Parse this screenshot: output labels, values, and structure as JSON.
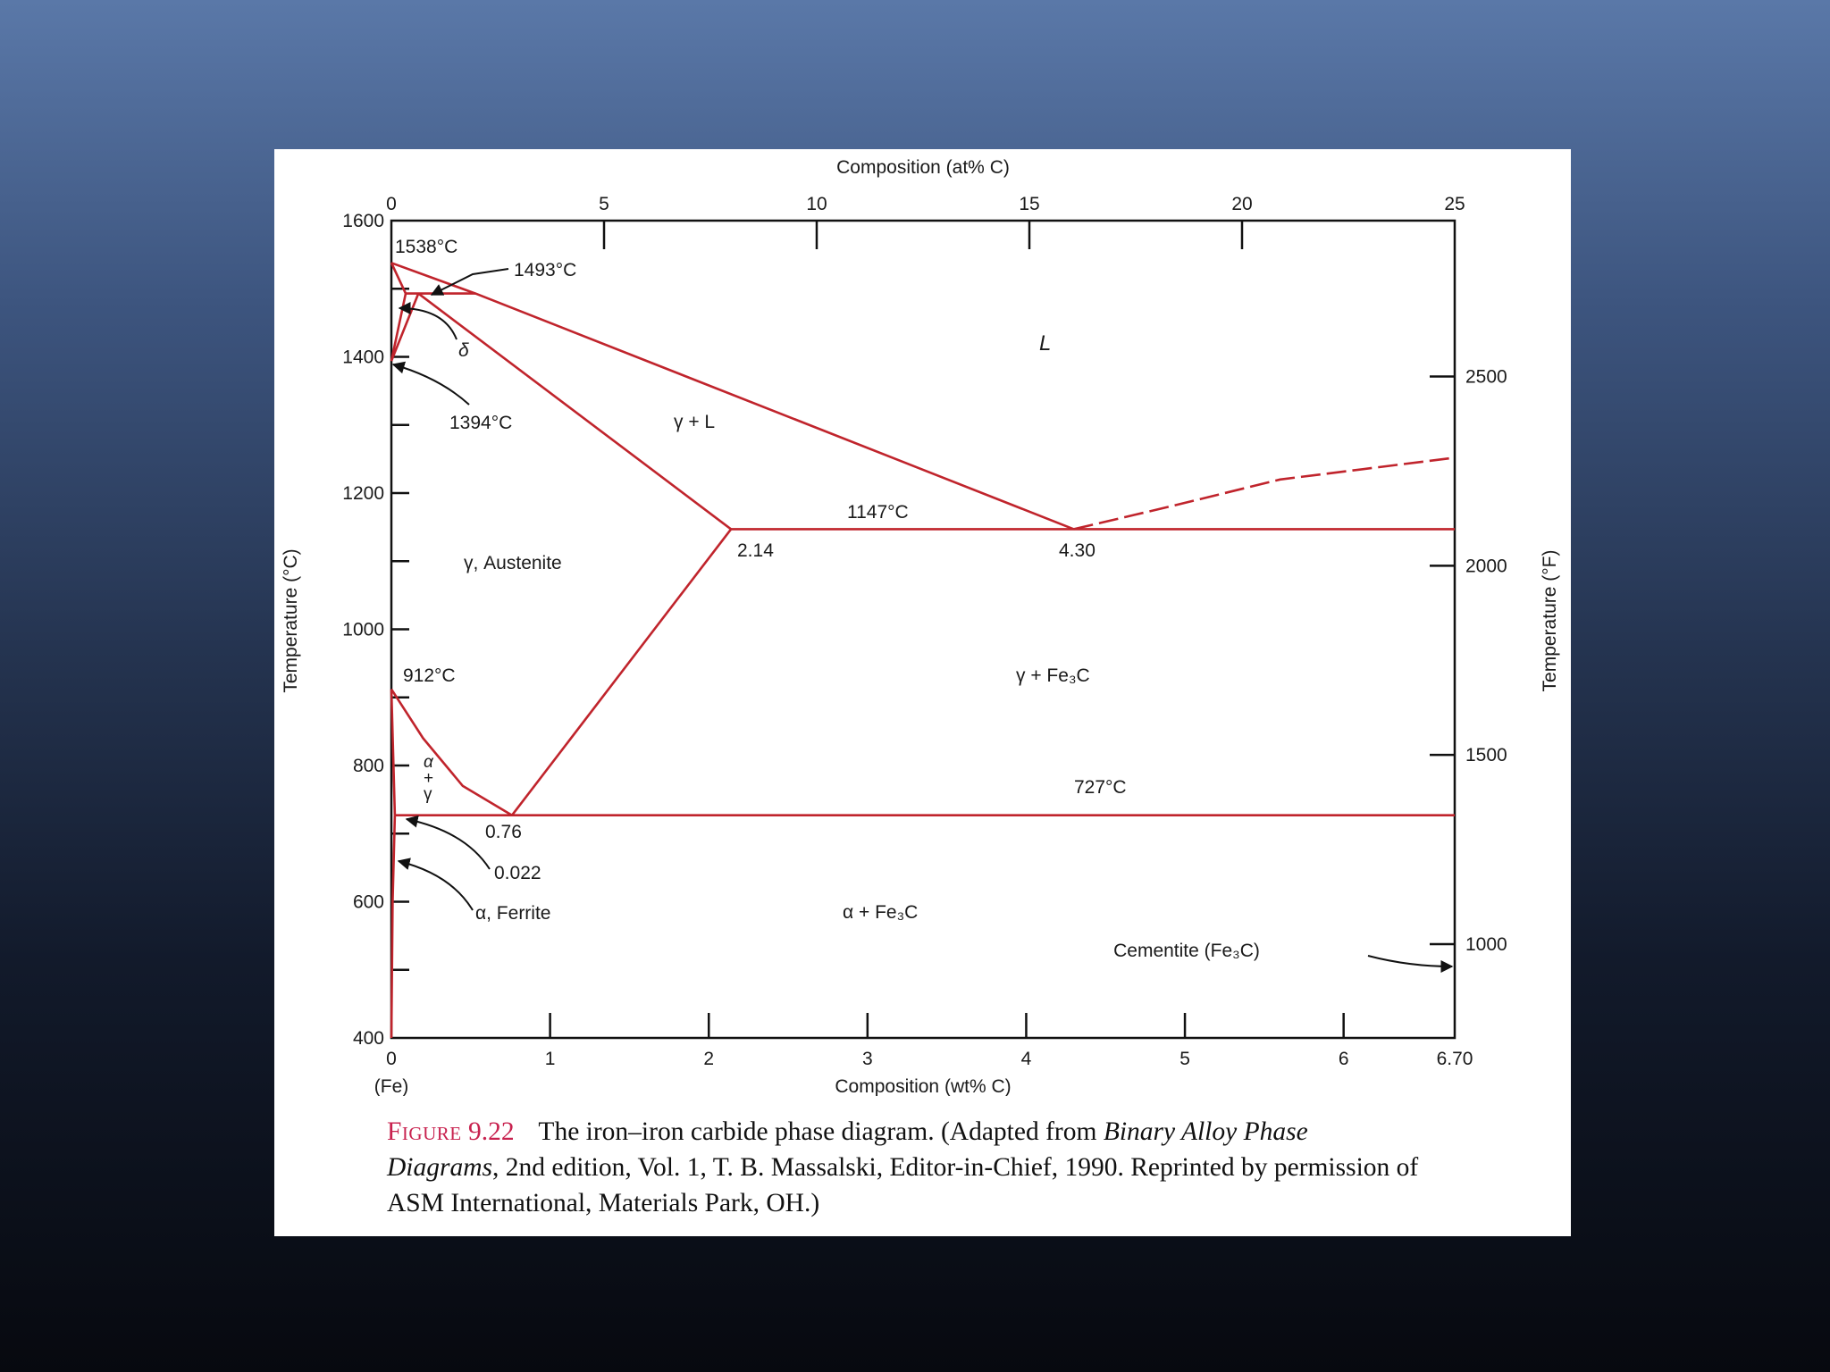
{
  "slide": {
    "background_top": "#5a78a8",
    "background_bottom": "#07090f"
  },
  "chart_data": {
    "type": "phase-diagram",
    "top_axis": {
      "label": "Composition (at% C)",
      "ticks": [
        "0",
        "5",
        "10",
        "15",
        "20",
        "25"
      ]
    },
    "bottom_axis": {
      "label": "Composition (wt% C)",
      "sublabel": "(Fe)",
      "range": [
        0,
        6.7
      ],
      "ticks": [
        "0",
        "1",
        "2",
        "3",
        "4",
        "5",
        "6",
        "6.70"
      ]
    },
    "left_axis": {
      "label": "Temperature (°C)",
      "range": [
        400,
        1600
      ],
      "ticks": [
        "400",
        "600",
        "800",
        "1000",
        "1200",
        "1400",
        "1600"
      ]
    },
    "right_axis": {
      "label": "Temperature (°F)",
      "ticks": [
        "1000",
        "1500",
        "2000",
        "2500"
      ]
    },
    "line_color": "#c0242c",
    "curves": {
      "liquidus_left": [
        [
          0,
          1538
        ],
        [
          0.53,
          1493
        ],
        [
          4.3,
          1147
        ]
      ],
      "liquidus_right": [
        [
          4.3,
          1147
        ],
        [
          4.9,
          1180
        ],
        [
          5.6,
          1220
        ],
        [
          6.7,
          1252
        ]
      ],
      "delta_solidus": [
        [
          0,
          1538
        ],
        [
          0.09,
          1493
        ]
      ],
      "peritectic_line": [
        [
          0.09,
          1493
        ],
        [
          0.53,
          1493
        ]
      ],
      "delta_gamma_upper": [
        [
          0.09,
          1493
        ],
        [
          0,
          1394
        ]
      ],
      "delta_gamma_lower": [
        [
          0.17,
          1493
        ],
        [
          0,
          1394
        ]
      ],
      "austenite_solidus": [
        [
          0.17,
          1493
        ],
        [
          2.14,
          1147
        ]
      ],
      "eutectic_line": [
        [
          2.14,
          1147
        ],
        [
          6.7,
          1147
        ]
      ],
      "acm_line": [
        [
          2.14,
          1147
        ],
        [
          0.76,
          727
        ]
      ],
      "a3_line": [
        [
          0,
          912
        ],
        [
          0.2,
          840
        ],
        [
          0.45,
          770
        ],
        [
          0.76,
          727
        ]
      ],
      "alpha_gamma_boundary": [
        [
          0,
          912
        ],
        [
          0.022,
          727
        ]
      ],
      "eutectoid_line": [
        [
          0.022,
          727
        ],
        [
          6.7,
          727
        ]
      ],
      "ferrite_solvus": [
        [
          0.022,
          727
        ],
        [
          0.008,
          600
        ],
        [
          0,
          400
        ]
      ]
    },
    "labels": {
      "t1538": "1538°C",
      "t1493": "1493°C",
      "delta": "δ",
      "t1394": "1394°C",
      "L": "L",
      "gamma_L": "γ + L",
      "t1147": "1147°C",
      "c214": "2.14",
      "c430": "4.30",
      "austenite": "γ, Austenite",
      "t912": "912°C",
      "gamma_fe3c": "γ + Fe₃C",
      "alpha_plus_gamma": [
        "α",
        "+",
        "γ"
      ],
      "t727": "727°C",
      "c076": "0.76",
      "c0022": "0.022",
      "ferrite": "α, Ferrite",
      "alpha_fe3c": "α + Fe₃C",
      "cementite": "Cementite (Fe₃C)"
    }
  },
  "caption": {
    "figure_label": "Figure",
    "figure_number": "9.22",
    "text_1": "The iron–iron carbide phase diagram. (Adapted from ",
    "italic_1": "Binary Alloy Phase Diagrams",
    "text_2": ", 2nd edition, Vol. 1, T. B. Massalski, Editor-in-Chief, 1990. Reprinted by permission of ASM International, Materials Park, OH.)"
  }
}
